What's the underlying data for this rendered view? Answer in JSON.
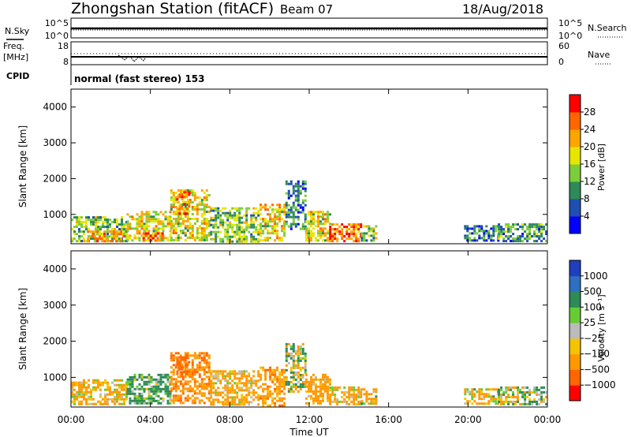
{
  "header": {
    "station": "Zhongshan Station (fitACF)",
    "beam": "Beam 07",
    "date": "18/Aug/2018"
  },
  "summary_panels": {
    "nsky_label": "N.Sky",
    "nsky_ticks": [
      "10^5",
      "10^0"
    ],
    "nsearch_label": "N.Search",
    "nsearch_ticks": [
      "10^5",
      "10^0"
    ],
    "freq_label": "Freq.",
    "freq_unit": "[MHz]",
    "freq_ticks": [
      "18",
      "8"
    ],
    "nave_label": "Nave",
    "nave_ticks": [
      "60",
      "0"
    ],
    "cpid_label": "CPID",
    "cpid_value": "normal (fast stereo) 153"
  },
  "axes": {
    "xlabel": "Time UT",
    "xticks": [
      "00:00",
      "04:00",
      "08:00",
      "12:00",
      "16:00",
      "20:00",
      "00:00"
    ],
    "ylabel_top": "Slant Range [km]",
    "ylabel_bottom": "Slant Range [km]",
    "yticks": [
      "1000",
      "2000",
      "3000",
      "4000"
    ]
  },
  "colorbars": {
    "power": {
      "label": "Power [dB]",
      "ticks": [
        "4",
        "8",
        "12",
        "16",
        "20",
        "24",
        "28"
      ],
      "colors": [
        "#0000ff",
        "#1f4fb0",
        "#2e8b57",
        "#7ccd3a",
        "#e6e600",
        "#ffa500",
        "#ff6600",
        "#ff0000"
      ]
    },
    "velocity": {
      "label": "Velocity [m s⁻¹]",
      "ticks": [
        "1000",
        "500",
        "100",
        "25",
        "−25",
        "−100",
        "−500",
        "−1000"
      ],
      "colors": [
        "#1f3fbf",
        "#2f6fbf",
        "#2e8b57",
        "#66cc33",
        "#bbbbbb",
        "#f5c400",
        "#ff9900",
        "#ff6600",
        "#ff0000"
      ]
    }
  },
  "chart_data": [
    {
      "type": "heatmap",
      "title": "Power",
      "xlabel": "Time UT",
      "ylabel": "Slant Range [km]",
      "xlim": [
        "00:00",
        "24:00"
      ],
      "ylim": [
        180,
        4500
      ],
      "colorbar_label": "Power [dB]",
      "regions": [
        {
          "t0": 0.0,
          "t1": 2.8,
          "r0": 250,
          "r1": 950,
          "power_db": 16
        },
        {
          "t0": 0.8,
          "t1": 2.6,
          "r0": 250,
          "r1": 550,
          "power_db": 24
        },
        {
          "t0": 2.8,
          "t1": 5.0,
          "r0": 250,
          "r1": 1100,
          "power_db": 20
        },
        {
          "t0": 3.6,
          "t1": 4.6,
          "r0": 250,
          "r1": 500,
          "power_db": 28
        },
        {
          "t0": 5.0,
          "t1": 7.0,
          "r0": 300,
          "r1": 1700,
          "power_db": 20
        },
        {
          "t0": 5.3,
          "t1": 6.0,
          "r0": 1000,
          "r1": 1650,
          "power_db": 26
        },
        {
          "t0": 7.0,
          "t1": 9.5,
          "r0": 250,
          "r1": 1200,
          "power_db": 16
        },
        {
          "t0": 9.5,
          "t1": 10.8,
          "r0": 250,
          "r1": 1300,
          "power_db": 20
        },
        {
          "t0": 10.8,
          "t1": 11.8,
          "r0": 600,
          "r1": 1950,
          "power_db": 10
        },
        {
          "t0": 11.8,
          "t1": 13.0,
          "r0": 250,
          "r1": 1100,
          "power_db": 20
        },
        {
          "t0": 13.0,
          "t1": 14.6,
          "r0": 250,
          "r1": 750,
          "power_db": 28
        },
        {
          "t0": 14.6,
          "t1": 15.4,
          "r0": 300,
          "r1": 700,
          "power_db": 16
        },
        {
          "t0": 19.8,
          "t1": 21.5,
          "r0": 250,
          "r1": 700,
          "power_db": 10
        },
        {
          "t0": 21.5,
          "t1": 24.0,
          "r0": 250,
          "r1": 750,
          "power_db": 12
        }
      ]
    },
    {
      "type": "heatmap",
      "title": "Velocity",
      "xlabel": "Time UT",
      "ylabel": "Slant Range [km]",
      "xlim": [
        "00:00",
        "24:00"
      ],
      "ylim": [
        180,
        4500
      ],
      "colorbar_label": "Velocity [m s⁻¹]",
      "regions": [
        {
          "t0": 0.0,
          "t1": 2.8,
          "r0": 250,
          "r1": 950,
          "velocity": -150
        },
        {
          "t0": 2.8,
          "t1": 5.0,
          "r0": 250,
          "r1": 1100,
          "velocity": 200
        },
        {
          "t0": 5.0,
          "t1": 7.0,
          "r0": 300,
          "r1": 1700,
          "velocity": -400
        },
        {
          "t0": 5.3,
          "t1": 6.0,
          "r0": 1000,
          "r1": 1650,
          "velocity": -700
        },
        {
          "t0": 7.0,
          "t1": 9.5,
          "r0": 250,
          "r1": 1200,
          "velocity": -200
        },
        {
          "t0": 9.5,
          "t1": 10.8,
          "r0": 250,
          "r1": 1300,
          "velocity": -300
        },
        {
          "t0": 10.8,
          "t1": 11.8,
          "r0": 600,
          "r1": 1950,
          "velocity": 0
        },
        {
          "t0": 11.8,
          "t1": 13.0,
          "r0": 250,
          "r1": 1100,
          "velocity": -250
        },
        {
          "t0": 13.0,
          "t1": 14.6,
          "r0": 250,
          "r1": 750,
          "velocity": -150
        },
        {
          "t0": 14.6,
          "t1": 15.4,
          "r0": 300,
          "r1": 700,
          "velocity": -100
        },
        {
          "t0": 19.8,
          "t1": 21.5,
          "r0": 250,
          "r1": 700,
          "velocity": -120
        },
        {
          "t0": 21.5,
          "t1": 24.0,
          "r0": 250,
          "r1": 750,
          "velocity": 50
        }
      ]
    }
  ]
}
